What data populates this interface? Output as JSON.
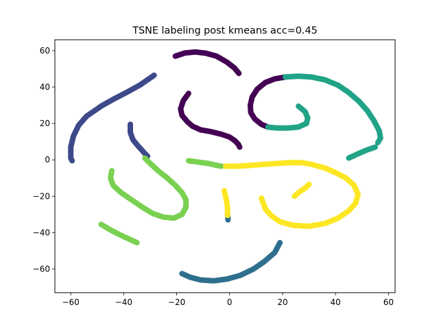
{
  "chart_data": {
    "type": "scatter",
    "title": "TSNE labeling post kmeans acc=0.45",
    "xlabel": "",
    "ylabel": "",
    "xlim": [
      -66,
      62.5
    ],
    "ylim": [
      -73,
      66
    ],
    "xticks": [
      -60,
      -40,
      -20,
      0,
      20,
      40,
      60
    ],
    "yticks": [
      -60,
      -40,
      -20,
      0,
      20,
      40,
      60
    ],
    "xtick_labels": [
      "−60",
      "−40",
      "−20",
      "0",
      "20",
      "40",
      "60"
    ],
    "ytick_labels": [
      "−60",
      "−40",
      "−20",
      "0",
      "20",
      "40",
      "60"
    ],
    "grid": false,
    "series": [
      {
        "color": "#440154",
        "paths": [
          [
            [
              -20.5,
              57
            ],
            [
              -17,
              58.7
            ],
            [
              -13,
              59.3
            ],
            [
              -9,
              58.6
            ],
            [
              -5,
              57
            ],
            [
              -1,
              53.7
            ],
            [
              1.8,
              50.5
            ],
            [
              3.5,
              47.5
            ]
          ],
          [
            [
              -15.5,
              36.5
            ],
            [
              -17.5,
              32.5
            ],
            [
              -18.5,
              28
            ],
            [
              -18,
              24.5
            ],
            [
              -16,
              21
            ],
            [
              -14,
              18.5
            ],
            [
              -11,
              16.5
            ],
            [
              -7,
              15.5
            ],
            [
              -3,
              14
            ],
            [
              0,
              12.5
            ],
            [
              2,
              10.5
            ],
            [
              3.3,
              8.5
            ],
            [
              3.8,
              7
            ]
          ],
          [
            [
              21,
              45.5
            ],
            [
              17,
              44.5
            ],
            [
              13.5,
              42.5
            ],
            [
              10.5,
              39
            ],
            [
              8.5,
              34.5
            ],
            [
              7.8,
              30
            ],
            [
              8,
              26
            ],
            [
              9.5,
              22.5
            ],
            [
              12,
              19.5
            ],
            [
              14.5,
              18
            ]
          ]
        ]
      },
      {
        "color": "#3e4989",
        "paths": [
          [
            [
              -28.5,
              46.5
            ],
            [
              -31,
              44
            ],
            [
              -34,
              41
            ],
            [
              -39,
              37
            ],
            [
              -43,
              34
            ],
            [
              -48,
              30
            ],
            [
              -51,
              27
            ],
            [
              -54,
              24
            ],
            [
              -57,
              19
            ],
            [
              -59,
              13
            ],
            [
              -60,
              7
            ],
            [
              -60,
              1
            ],
            [
              -59.5,
              -0.5
            ]
          ],
          [
            [
              -37.5,
              19.5
            ],
            [
              -37.5,
              15
            ],
            [
              -36.5,
              11
            ],
            [
              -34.5,
              7.5
            ],
            [
              -32,
              3.5
            ],
            [
              -31,
              2
            ]
          ]
        ]
      },
      {
        "color": "#2e6f8e",
        "paths": [
          [
            [
              -0.8,
              -30
            ],
            [
              -0.6,
              -33
            ]
          ],
          [
            [
              19,
              -45.5
            ],
            [
              17,
              -51
            ],
            [
              13,
              -56
            ],
            [
              9,
              -60
            ],
            [
              4,
              -63.5
            ],
            [
              -1,
              -65.5
            ],
            [
              -6,
              -66.5
            ],
            [
              -11,
              -66
            ],
            [
              -15,
              -64.5
            ],
            [
              -18,
              -62.5
            ]
          ]
        ]
      },
      {
        "color": "#21918c",
        "paths": [],
        "points": []
      },
      {
        "color": "#20a386",
        "paths": [
          [
            [
              14.5,
              18
            ],
            [
              18,
              17.5
            ],
            [
              22,
              17.5
            ],
            [
              26,
              18
            ],
            [
              29,
              20
            ],
            [
              29.5,
              23
            ],
            [
              28.5,
              26.5
            ],
            [
              26,
              29.5
            ]
          ],
          [
            [
              21,
              45.5
            ],
            [
              26,
              46
            ],
            [
              31,
              45.5
            ],
            [
              36,
              44
            ],
            [
              41,
              41
            ],
            [
              45,
              37
            ],
            [
              49,
              32
            ],
            [
              52,
              27
            ],
            [
              54.5,
              21.5
            ],
            [
              56.5,
              16
            ],
            [
              57,
              12
            ],
            [
              56,
              9.5
            ]
          ],
          [
            [
              55,
              7
            ],
            [
              52,
              5.5
            ],
            [
              48,
              3
            ],
            [
              45,
              1
            ]
          ]
        ]
      },
      {
        "color": "#7ad151",
        "paths": [
          [
            [
              -44.5,
              -6
            ],
            [
              -45,
              -10
            ],
            [
              -44,
              -14
            ],
            [
              -41,
              -18
            ],
            [
              -37,
              -22
            ],
            [
              -33,
              -26
            ],
            [
              -29,
              -29.5
            ],
            [
              -25,
              -31.5
            ],
            [
              -21,
              -32
            ],
            [
              -18,
              -30
            ],
            [
              -16.5,
              -26
            ],
            [
              -16.5,
              -22
            ],
            [
              -18,
              -18
            ],
            [
              -20.5,
              -14
            ],
            [
              -23.5,
              -10
            ],
            [
              -27,
              -6
            ],
            [
              -30,
              -2
            ],
            [
              -32,
              1
            ]
          ],
          [
            [
              -15.5,
              -0.5
            ],
            [
              -12,
              -1.2
            ],
            [
              -8,
              -2
            ],
            [
              -5,
              -3
            ],
            [
              -3,
              -3.5
            ]
          ],
          [
            [
              -48.5,
              -35.5
            ],
            [
              -45,
              -38.5
            ],
            [
              -41,
              -41.5
            ],
            [
              -38,
              -43.5
            ],
            [
              -35,
              -45.5
            ]
          ]
        ]
      },
      {
        "color": "#fde725",
        "paths": [
          [
            [
              -1.5,
              -3.5
            ],
            [
              3,
              -3.5
            ],
            [
              8,
              -3
            ],
            [
              13,
              -2.5
            ],
            [
              18,
              -2
            ],
            [
              23,
              -1.5
            ],
            [
              27,
              -1.5
            ],
            [
              31,
              -2.5
            ],
            [
              36,
              -4.5
            ],
            [
              40,
              -7
            ],
            [
              44,
              -10
            ],
            [
              47,
              -14
            ],
            [
              48.5,
              -19
            ],
            [
              47.5,
              -24
            ],
            [
              45,
              -28
            ],
            [
              41,
              -32
            ],
            [
              36,
              -35
            ],
            [
              30,
              -36.5
            ],
            [
              24,
              -36
            ],
            [
              19,
              -34
            ],
            [
              16,
              -31
            ],
            [
              13.5,
              -27
            ],
            [
              12,
              -21
            ]
          ],
          [
            [
              -2,
              -17
            ],
            [
              -1.2,
              -22
            ],
            [
              -0.8,
              -26.5
            ],
            [
              -0.8,
              -30.5
            ]
          ],
          [
            [
              24.5,
              -20
            ],
            [
              26,
              -18
            ],
            [
              28.5,
              -15.5
            ],
            [
              30,
              -13.5
            ]
          ]
        ]
      }
    ]
  }
}
